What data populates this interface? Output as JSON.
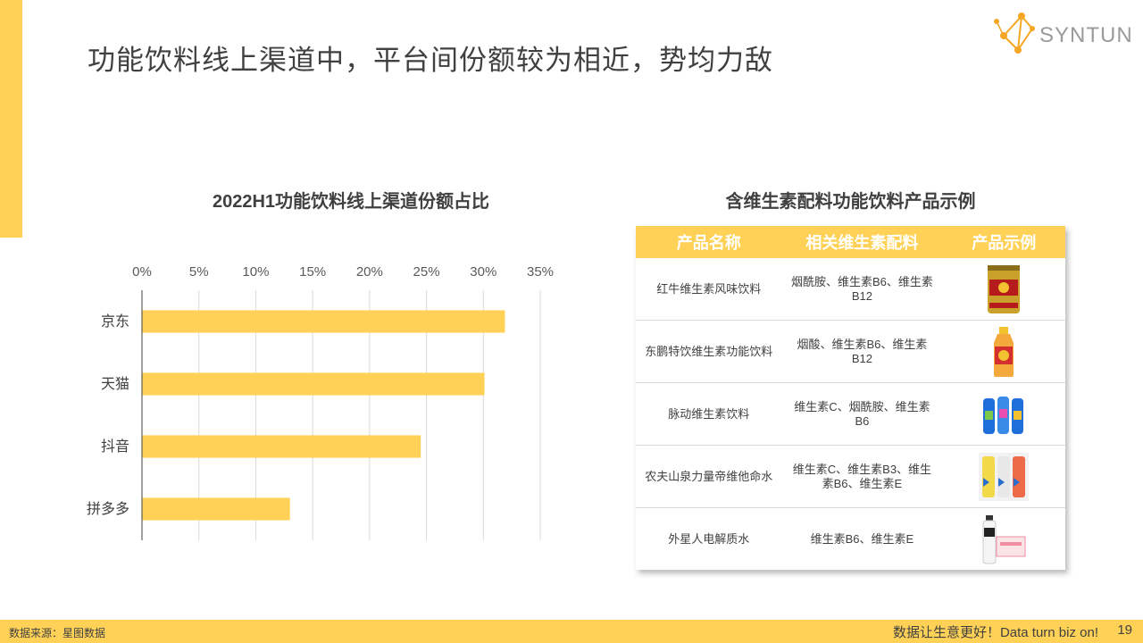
{
  "header": {
    "title": "功能饮料线上渠道中，平台间份额较为相近，势均力敌",
    "logo_text": "SYNTUN"
  },
  "chart_data": {
    "type": "bar",
    "orientation": "horizontal",
    "title": "2022H1功能饮料线上渠道份额占比",
    "categories": [
      "京东",
      "天猫",
      "抖音",
      "拼多多"
    ],
    "values": [
      31.9,
      30.1,
      24.5,
      13.0
    ],
    "unit": "%",
    "xlim": [
      0,
      35
    ],
    "ticks": [
      "0%",
      "5%",
      "10%",
      "15%",
      "20%",
      "25%",
      "30%",
      "35%"
    ],
    "tick_values": [
      0,
      5,
      10,
      15,
      20,
      25,
      30,
      35
    ],
    "grid": true,
    "bar_color": "#FFD257"
  },
  "table": {
    "title": "含维生素配料功能饮料产品示例",
    "headers": [
      "产品名称",
      "相关维生素配料",
      "产品示例"
    ],
    "rows": [
      {
        "name": "红牛维生素风味饮料",
        "vitamins": "烟酰胺、维生素B6、维生素B12",
        "image": "red-bull-can-icon"
      },
      {
        "name": "东鹏特饮维生素功能饮料",
        "vitamins": "烟酸、维生素B6、维生素B12",
        "image": "dongpeng-bottle-icon"
      },
      {
        "name": "脉动维生素饮料",
        "vitamins": "维生素C、烟酰胺、维生素B6",
        "image": "mizone-bottles-icon"
      },
      {
        "name": "农夫山泉力量帝维他命水",
        "vitamins": "维生素C、维生素B3、维生素B6、维生素E",
        "image": "vitamin-water-bottles-icon"
      },
      {
        "name": "外星人电解质水",
        "vitamins": "维生素B6、维生素E",
        "image": "alienergy-bottle-icon"
      }
    ]
  },
  "footer": {
    "source": "数据来源：星图数据",
    "slogan": "数据让生意更好！Data  turn  biz  on!",
    "page": "19"
  },
  "colors": {
    "accent": "#FFD257",
    "text": "#404040"
  }
}
